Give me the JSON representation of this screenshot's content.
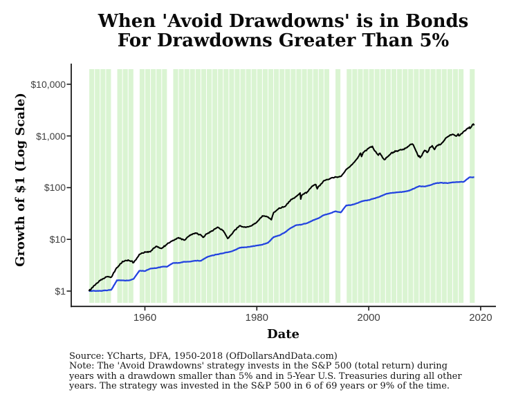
{
  "title_line1": "When 'Avoid Drawdowns' is in Bonds",
  "title_line2": "For Drawdowns Greater Than 5%",
  "footer_lines": [
    "Source:  YCharts, DFA, 1950-2018 (OfDollarsAndData.com)",
    "Note: The 'Avoid Drawdowns' strategy invests in the S&P 500 (total return) during",
    "years with a drawdown smaller than 5% and in 5-Year U.S. Treasuries during all other",
    "years. The strategy was invested in the S&P 500 in 6 of 69 years or 9% of the time."
  ],
  "colors": {
    "shading_green": "#daf4d2",
    "sp500_line": "#000000",
    "strategy_line": "#2444e0",
    "axis": "#1a1a1a",
    "tick_label": "#3d3d3d"
  },
  "chart_data": {
    "type": "line",
    "title": "When 'Avoid Drawdowns' is in Bonds For Drawdowns Greater Than 5%",
    "xlabel": "Date",
    "ylabel": "Growth of $1 (Log Scale)",
    "log_scale": true,
    "grid": false,
    "legend": "none",
    "x_range_years": [
      1950,
      2019
    ],
    "ylim": [
      1,
      10000
    ],
    "x_ticks": [
      {
        "value": 1960,
        "label": "1960"
      },
      {
        "value": 1980,
        "label": "1980"
      },
      {
        "value": 2000,
        "label": "2000"
      },
      {
        "value": 2020,
        "label": "2020"
      }
    ],
    "y_ticks": [
      {
        "value": 1,
        "label": "$1"
      },
      {
        "value": 10,
        "label": "$10"
      },
      {
        "value": 100,
        "label": "$100"
      },
      {
        "value": 1000,
        "label": "$1,000"
      },
      {
        "value": 10000,
        "label": "$10,000"
      }
    ],
    "shading": {
      "first_year": 1950,
      "last_year": 2018,
      "unshaded_sp500_years": [
        1954,
        1958,
        1964,
        1993,
        1995,
        2017
      ]
    },
    "series": [
      {
        "name": "S&P 500 (total return)",
        "color": "#000000",
        "points": [
          [
            1950,
            1.0
          ],
          [
            1951,
            1.29
          ],
          [
            1952,
            1.6
          ],
          [
            1953,
            1.88
          ],
          [
            1954,
            1.86
          ],
          [
            1955,
            2.85
          ],
          [
            1956,
            3.75
          ],
          [
            1957,
            4.0
          ],
          [
            1958,
            3.57
          ],
          [
            1959,
            5.12
          ],
          [
            1960,
            5.74
          ],
          [
            1961,
            5.77
          ],
          [
            1962,
            7.32
          ],
          [
            1963,
            6.68
          ],
          [
            1964,
            8.21
          ],
          [
            1965,
            9.56
          ],
          [
            1966,
            10.8
          ],
          [
            1967,
            9.67
          ],
          [
            1968,
            12.0
          ],
          [
            1969,
            13.3
          ],
          [
            1970,
            12.2
          ],
          [
            1970.5,
            11.0
          ],
          [
            1971,
            12.7
          ],
          [
            1972,
            14.5
          ],
          [
            1973,
            17.2
          ],
          [
            1974,
            14.7
          ],
          [
            1974.8,
            10.4
          ],
          [
            1975,
            10.8
          ],
          [
            1976,
            14.8
          ],
          [
            1977,
            18.4
          ],
          [
            1978,
            17.1
          ],
          [
            1979,
            18.2
          ],
          [
            1980,
            21.5
          ],
          [
            1981,
            28.5
          ],
          [
            1982,
            27.1
          ],
          [
            1982.6,
            24.0
          ],
          [
            1983,
            32.9
          ],
          [
            1984,
            40.4
          ],
          [
            1985,
            42.9
          ],
          [
            1986,
            56.5
          ],
          [
            1987,
            67.1
          ],
          [
            1987.75,
            79
          ],
          [
            1987.85,
            60
          ],
          [
            1988,
            70.6
          ],
          [
            1989,
            82.4
          ],
          [
            1990,
            108
          ],
          [
            1990.55,
            115
          ],
          [
            1990.8,
            95
          ],
          [
            1991,
            105
          ],
          [
            1992,
            137
          ],
          [
            1993,
            147
          ],
          [
            1994,
            162
          ],
          [
            1995,
            164
          ],
          [
            1996,
            226
          ],
          [
            1997,
            278
          ],
          [
            1998,
            371
          ],
          [
            1998.55,
            465
          ],
          [
            1998.72,
            400
          ],
          [
            1999,
            477
          ],
          [
            2000,
            578
          ],
          [
            2000.65,
            630
          ],
          [
            2001,
            525
          ],
          [
            2001.72,
            424
          ],
          [
            2002,
            463
          ],
          [
            2002.78,
            348
          ],
          [
            2003,
            360
          ],
          [
            2004,
            464
          ],
          [
            2005,
            514
          ],
          [
            2006,
            540
          ],
          [
            2007,
            625
          ],
          [
            2007.78,
            700
          ],
          [
            2008,
            659
          ],
          [
            2008.9,
            400
          ],
          [
            2009,
            415
          ],
          [
            2009.2,
            380
          ],
          [
            2010,
            525
          ],
          [
            2010.5,
            480
          ],
          [
            2011,
            604
          ],
          [
            2011.35,
            645
          ],
          [
            2011.75,
            545
          ],
          [
            2012,
            617
          ],
          [
            2013,
            716
          ],
          [
            2014,
            947
          ],
          [
            2015,
            1077
          ],
          [
            2015.65,
            990
          ],
          [
            2016,
            1092
          ],
          [
            2016.1,
            1010
          ],
          [
            2017,
            1222
          ],
          [
            2018,
            1489
          ],
          [
            2018.1,
            1400
          ],
          [
            2018.7,
            1700
          ],
          [
            2018.85,
            1600
          ]
        ]
      },
      {
        "name": "Avoid Drawdowns strategy",
        "color": "#2444e0",
        "points": [
          [
            1950,
            1.0
          ],
          [
            1951,
            1.01
          ],
          [
            1952,
            1.01
          ],
          [
            1953,
            1.03
          ],
          [
            1954,
            1.06
          ],
          [
            1955,
            1.62
          ],
          [
            1956,
            1.61
          ],
          [
            1957,
            1.6
          ],
          [
            1958,
            1.73
          ],
          [
            1959,
            2.47
          ],
          [
            1960,
            2.44
          ],
          [
            1961,
            2.73
          ],
          [
            1962,
            2.78
          ],
          [
            1963,
            2.94
          ],
          [
            1964,
            2.98
          ],
          [
            1965,
            3.48
          ],
          [
            1966,
            3.51
          ],
          [
            1967,
            3.68
          ],
          [
            1968,
            3.71
          ],
          [
            1969,
            3.88
          ],
          [
            1970,
            3.85
          ],
          [
            1971,
            4.5
          ],
          [
            1972,
            4.9
          ],
          [
            1973,
            5.15
          ],
          [
            1974,
            5.39
          ],
          [
            1975,
            5.7
          ],
          [
            1976,
            6.14
          ],
          [
            1977,
            6.93
          ],
          [
            1978,
            7.03
          ],
          [
            1979,
            7.27
          ],
          [
            1980,
            7.57
          ],
          [
            1981,
            7.87
          ],
          [
            1982,
            8.61
          ],
          [
            1983,
            11.1
          ],
          [
            1984,
            11.9
          ],
          [
            1985,
            13.6
          ],
          [
            1986,
            16.4
          ],
          [
            1987,
            18.8
          ],
          [
            1988,
            19.4
          ],
          [
            1989,
            20.6
          ],
          [
            1990,
            23.3
          ],
          [
            1991,
            25.6
          ],
          [
            1992,
            29.5
          ],
          [
            1993,
            31.7
          ],
          [
            1994,
            34.9
          ],
          [
            1995,
            33.1
          ],
          [
            1996,
            45.5
          ],
          [
            1997,
            46.5
          ],
          [
            1998,
            50.4
          ],
          [
            1999,
            55.5
          ],
          [
            2000,
            57.5
          ],
          [
            2001,
            62
          ],
          [
            2002,
            67
          ],
          [
            2003,
            75
          ],
          [
            2004,
            79
          ],
          [
            2005,
            81
          ],
          [
            2006,
            83
          ],
          [
            2007,
            86
          ],
          [
            2008,
            95
          ],
          [
            2009,
            107
          ],
          [
            2010,
            105
          ],
          [
            2011,
            112
          ],
          [
            2012,
            122
          ],
          [
            2013,
            125
          ],
          [
            2014,
            122
          ],
          [
            2015,
            127
          ],
          [
            2016,
            128
          ],
          [
            2017,
            130
          ],
          [
            2018,
            158
          ],
          [
            2018.85,
            158
          ]
        ]
      }
    ]
  }
}
